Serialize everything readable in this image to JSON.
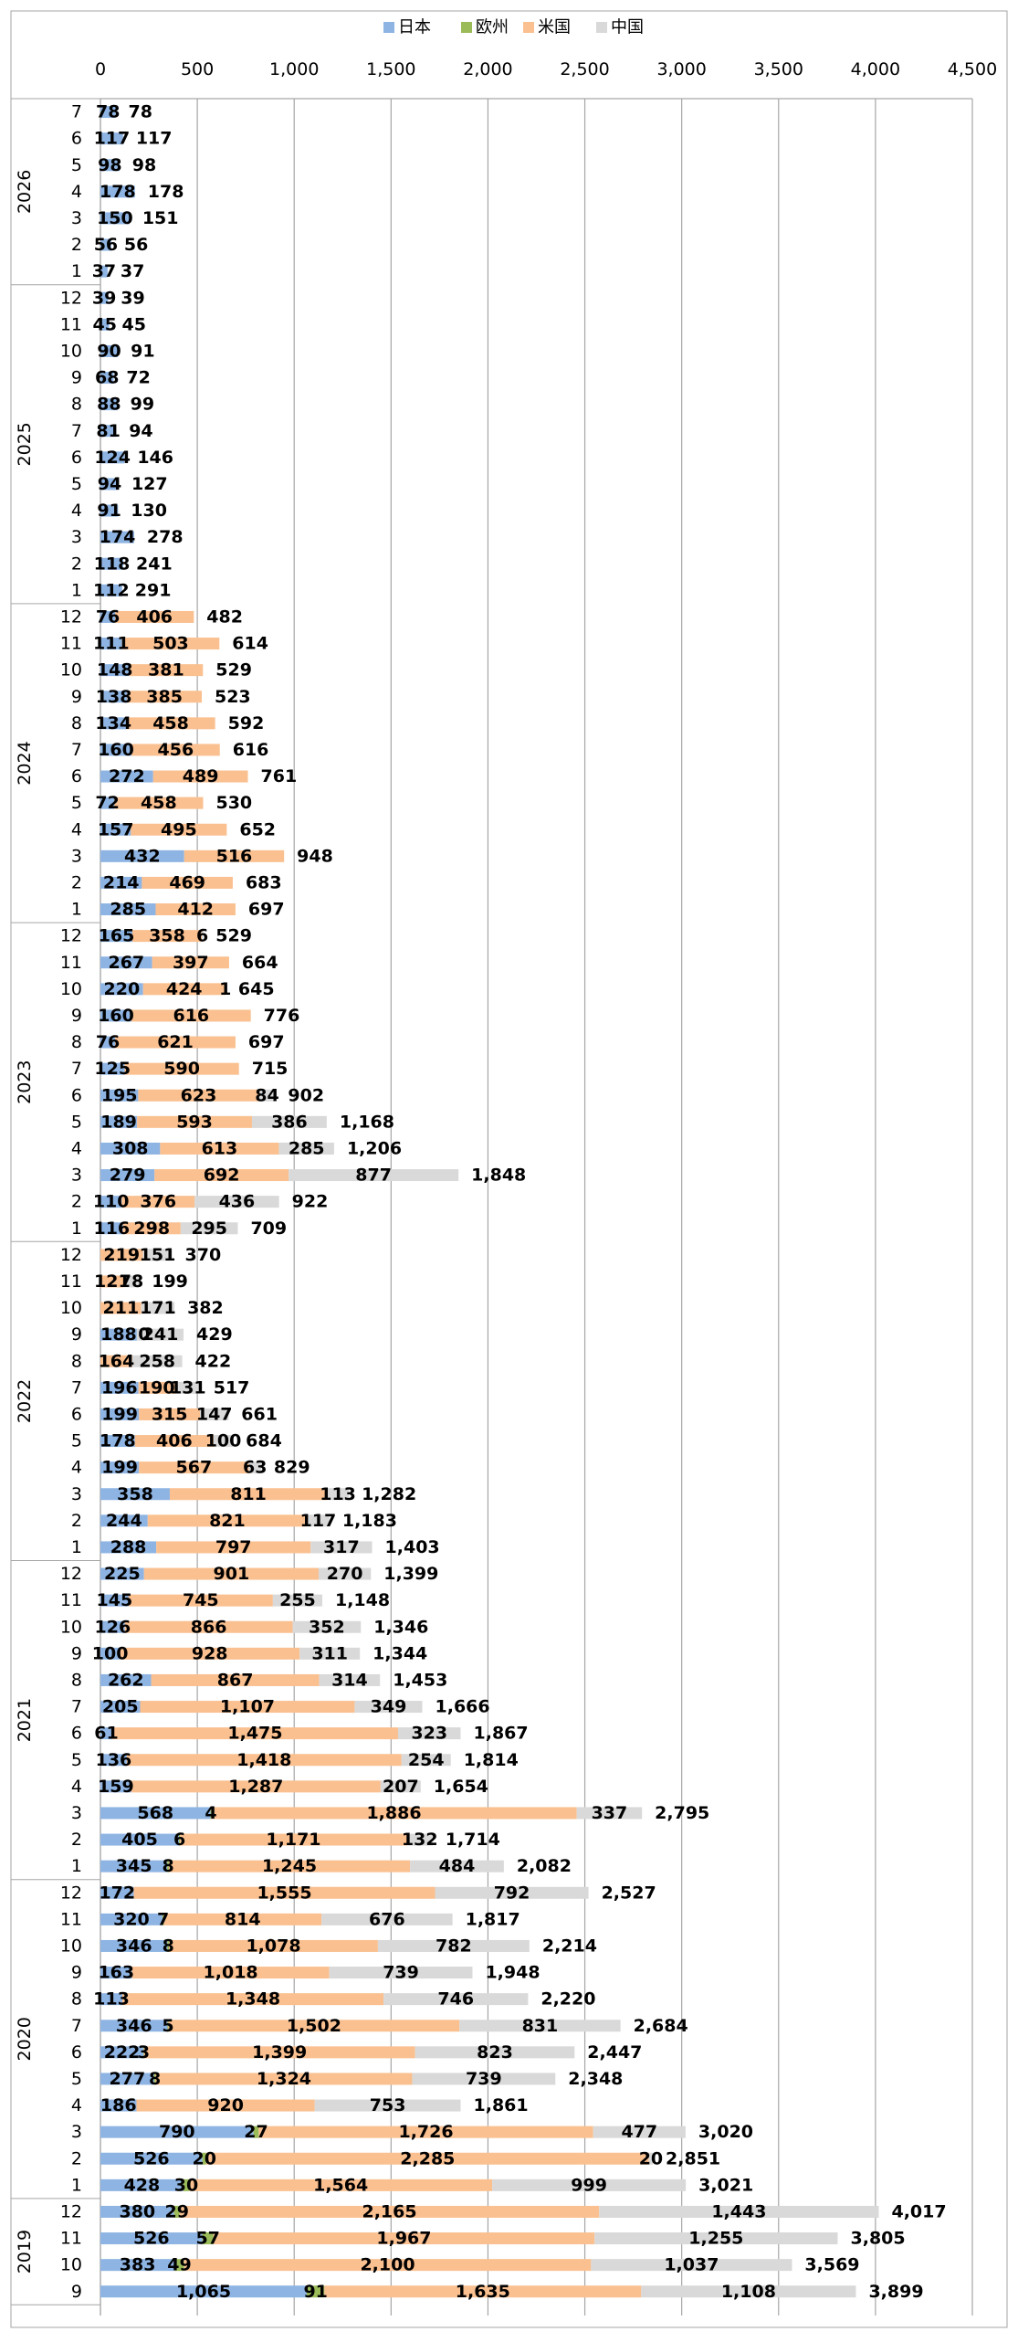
{
  "chart_data": {
    "type": "bar",
    "orientation": "horizontal",
    "stacked": true,
    "legend_position": "top",
    "grid": true,
    "xlim": [
      0,
      4500
    ],
    "x_ticks": [
      "0",
      "500",
      "1,000",
      "1,500",
      "2,000",
      "2,500",
      "3,000",
      "3,500",
      "4,000",
      "4,500"
    ],
    "series": [
      {
        "name": "日本",
        "color": "#8EB4E3"
      },
      {
        "name": "欧州",
        "color": "#9BBB59"
      },
      {
        "name": "米国",
        "color": "#FAC090"
      },
      {
        "name": "中国",
        "color": "#D9D9D9"
      }
    ],
    "groups": [
      {
        "year": "2026",
        "rows": [
          {
            "month": "7",
            "jp": 78,
            "eu": null,
            "us": null,
            "cn": null,
            "total": "78"
          },
          {
            "month": "6",
            "jp": 117,
            "eu": null,
            "us": null,
            "cn": null,
            "total": "117"
          },
          {
            "month": "5",
            "jp": 98,
            "eu": null,
            "us": null,
            "cn": null,
            "total": "98"
          },
          {
            "month": "4",
            "jp": 178,
            "eu": null,
            "us": null,
            "cn": null,
            "total": "178"
          },
          {
            "month": "3",
            "jp": 150,
            "eu": null,
            "us": null,
            "cn": null,
            "total": "151"
          },
          {
            "month": "2",
            "jp": 56,
            "eu": null,
            "us": null,
            "cn": null,
            "total": "56"
          },
          {
            "month": "1",
            "jp": 37,
            "eu": null,
            "us": null,
            "cn": null,
            "total": "37"
          }
        ]
      },
      {
        "year": "2025",
        "rows": [
          {
            "month": "12",
            "jp": 39,
            "eu": null,
            "us": null,
            "cn": null,
            "total": "39"
          },
          {
            "month": "11",
            "jp": 45,
            "eu": null,
            "us": null,
            "cn": null,
            "total": "45"
          },
          {
            "month": "10",
            "jp": 90,
            "eu": null,
            "us": null,
            "cn": null,
            "total": "91"
          },
          {
            "month": "9",
            "jp": 68,
            "eu": null,
            "us": null,
            "cn": null,
            "total": "72"
          },
          {
            "month": "8",
            "jp": 88,
            "eu": null,
            "us": null,
            "cn": null,
            "total": "99"
          },
          {
            "month": "7",
            "jp": 81,
            "eu": null,
            "us": null,
            "cn": null,
            "total": "94"
          },
          {
            "month": "6",
            "jp": 124,
            "eu": null,
            "us": null,
            "cn": null,
            "total": "146"
          },
          {
            "month": "5",
            "jp": 94,
            "eu": null,
            "us": null,
            "cn": null,
            "total": "127"
          },
          {
            "month": "4",
            "jp": 91,
            "eu": null,
            "us": null,
            "cn": null,
            "total": "130"
          },
          {
            "month": "3",
            "jp": 174,
            "eu": null,
            "us": null,
            "cn": null,
            "total": "278"
          },
          {
            "month": "2",
            "jp": 118,
            "eu": null,
            "us": null,
            "cn": null,
            "total": "241"
          },
          {
            "month": "1",
            "jp": 112,
            "eu": null,
            "us": null,
            "cn": null,
            "total": "291"
          }
        ]
      },
      {
        "year": "2024",
        "rows": [
          {
            "month": "12",
            "jp": 76,
            "eu": null,
            "us": 406,
            "cn": null,
            "total": "482"
          },
          {
            "month": "11",
            "jp": 111,
            "eu": null,
            "us": 503,
            "cn": null,
            "total": "614"
          },
          {
            "month": "10",
            "jp": 148,
            "eu": null,
            "us": 381,
            "cn": null,
            "total": "529"
          },
          {
            "month": "9",
            "jp": 138,
            "eu": null,
            "us": 385,
            "cn": null,
            "total": "523"
          },
          {
            "month": "8",
            "jp": 134,
            "eu": null,
            "us": 458,
            "cn": null,
            "total": "592"
          },
          {
            "month": "7",
            "jp": 160,
            "eu": null,
            "us": 456,
            "cn": null,
            "total": "616"
          },
          {
            "month": "6",
            "jp": 272,
            "eu": null,
            "us": 489,
            "cn": null,
            "total": "761"
          },
          {
            "month": "5",
            "jp": 72,
            "eu": null,
            "us": 458,
            "cn": null,
            "total": "530"
          },
          {
            "month": "4",
            "jp": 157,
            "eu": null,
            "us": 495,
            "cn": null,
            "total": "652"
          },
          {
            "month": "3",
            "jp": 432,
            "eu": null,
            "us": 516,
            "cn": null,
            "total": "948"
          },
          {
            "month": "2",
            "jp": 214,
            "eu": null,
            "us": 469,
            "cn": null,
            "total": "683"
          },
          {
            "month": "1",
            "jp": 285,
            "eu": null,
            "us": 412,
            "cn": null,
            "total": "697"
          }
        ]
      },
      {
        "year": "2023",
        "rows": [
          {
            "month": "12",
            "jp": 165,
            "eu": null,
            "us": 358,
            "cn": 6,
            "total": "529"
          },
          {
            "month": "11",
            "jp": 267,
            "eu": null,
            "us": 397,
            "cn": null,
            "total": "664"
          },
          {
            "month": "10",
            "jp": 220,
            "eu": null,
            "us": 424,
            "cn": 1,
            "total": "645"
          },
          {
            "month": "9",
            "jp": 160,
            "eu": null,
            "us": 616,
            "cn": null,
            "total": "776"
          },
          {
            "month": "8",
            "jp": 76,
            "eu": null,
            "us": 621,
            "cn": null,
            "total": "697"
          },
          {
            "month": "7",
            "jp": 125,
            "eu": null,
            "us": 590,
            "cn": null,
            "total": "715"
          },
          {
            "month": "6",
            "jp": 195,
            "eu": null,
            "us": 623,
            "cn": 84,
            "total": "902"
          },
          {
            "month": "5",
            "jp": 189,
            "eu": null,
            "us": 593,
            "cn": 386,
            "total": "1,168"
          },
          {
            "month": "4",
            "jp": 308,
            "eu": null,
            "us": 613,
            "cn": 285,
            "total": "1,206"
          },
          {
            "month": "3",
            "jp": 279,
            "eu": null,
            "us": 692,
            "cn": 877,
            "total": "1,848"
          },
          {
            "month": "2",
            "jp": 110,
            "eu": null,
            "us": 376,
            "cn": 436,
            "total": "922"
          },
          {
            "month": "1",
            "jp": 116,
            "eu": null,
            "us": 298,
            "cn": 295,
            "total": "709"
          }
        ]
      },
      {
        "year": "2022",
        "rows": [
          {
            "month": "12",
            "jp": null,
            "eu": null,
            "us": 219,
            "cn": 151,
            "total": "370"
          },
          {
            "month": "11",
            "jp": null,
            "eu": null,
            "us": 121,
            "cn": 78,
            "total": "199"
          },
          {
            "month": "10",
            "jp": null,
            "eu": null,
            "us": 211,
            "cn": 171,
            "total": "382"
          },
          {
            "month": "9",
            "jp": 188,
            "eu": null,
            "us": 0,
            "cn": 241,
            "total": "429"
          },
          {
            "month": "8",
            "jp": null,
            "eu": null,
            "us": 164,
            "cn": 258,
            "total": "422"
          },
          {
            "month": "7",
            "jp": 196,
            "eu": null,
            "us": 190,
            "cn": 131,
            "total": "517"
          },
          {
            "month": "6",
            "jp": 199,
            "eu": null,
            "us": 315,
            "cn": 147,
            "total": "661"
          },
          {
            "month": "5",
            "jp": 178,
            "eu": null,
            "us": 406,
            "cn": 100,
            "total": "684"
          },
          {
            "month": "4",
            "jp": 199,
            "eu": null,
            "us": 567,
            "cn": 63,
            "total": "829"
          },
          {
            "month": "3",
            "jp": 358,
            "eu": null,
            "us": 811,
            "cn": 113,
            "total": "1,282"
          },
          {
            "month": "2",
            "jp": 244,
            "eu": null,
            "us": 821,
            "cn": 117,
            "total": "1,183"
          },
          {
            "month": "1",
            "jp": 288,
            "eu": null,
            "us": 797,
            "cn": 317,
            "total": "1,403"
          }
        ]
      },
      {
        "year": "2021",
        "rows": [
          {
            "month": "12",
            "jp": 225,
            "eu": null,
            "us": 901,
            "cn": 270,
            "total": "1,399"
          },
          {
            "month": "11",
            "jp": 145,
            "eu": null,
            "us": 745,
            "cn": 255,
            "total": "1,148"
          },
          {
            "month": "10",
            "jp": 126,
            "eu": null,
            "us": 866,
            "cn": 352,
            "total": "1,346"
          },
          {
            "month": "9",
            "jp": 100,
            "eu": null,
            "us": 928,
            "cn": 311,
            "total": "1,344"
          },
          {
            "month": "8",
            "jp": 262,
            "eu": null,
            "us": 867,
            "cn": 314,
            "total": "1,453"
          },
          {
            "month": "7",
            "jp": 205,
            "eu": null,
            "us": "1,107",
            "cn": 349,
            "total": "1,666"
          },
          {
            "month": "6",
            "jp": 61,
            "eu": null,
            "us": "1,475",
            "cn": 323,
            "total": "1,867"
          },
          {
            "month": "5",
            "jp": 136,
            "eu": null,
            "us": "1,418",
            "cn": 254,
            "total": "1,814"
          },
          {
            "month": "4",
            "jp": 159,
            "eu": null,
            "us": "1,287",
            "cn": 207,
            "total": "1,654"
          },
          {
            "month": "3",
            "jp": 568,
            "eu": 4,
            "us": "1,886",
            "cn": 337,
            "total": "2,795"
          },
          {
            "month": "2",
            "jp": 405,
            "eu": 6,
            "us": "1,171",
            "cn": 132,
            "total": "1,714"
          },
          {
            "month": "1",
            "jp": 345,
            "eu": 8,
            "us": "1,245",
            "cn": 484,
            "total": "2,082"
          }
        ]
      },
      {
        "year": "2020",
        "rows": [
          {
            "month": "12",
            "jp": 172,
            "eu": null,
            "us": "1,555",
            "cn": 792,
            "total": "2,527"
          },
          {
            "month": "11",
            "jp": 320,
            "eu": 7,
            "us": 814,
            "cn": 676,
            "total": "1,817"
          },
          {
            "month": "10",
            "jp": 346,
            "eu": 8,
            "us": "1,078",
            "cn": 782,
            "total": "2,214"
          },
          {
            "month": "9",
            "jp": 163,
            "eu": null,
            "us": "1,018",
            "cn": 739,
            "total": "1,948"
          },
          {
            "month": "8",
            "jp": 113,
            "eu": null,
            "us": "1,348",
            "cn": 746,
            "total": "2,220"
          },
          {
            "month": "7",
            "jp": 346,
            "eu": 5,
            "us": "1,502",
            "cn": 831,
            "total": "2,684"
          },
          {
            "month": "6",
            "jp": 222,
            "eu": 3,
            "us": "1,399",
            "cn": 823,
            "total": "2,447"
          },
          {
            "month": "5",
            "jp": 277,
            "eu": 8,
            "us": "1,324",
            "cn": 739,
            "total": "2,348"
          },
          {
            "month": "4",
            "jp": 186,
            "eu": null,
            "us": 920,
            "cn": 753,
            "total": "1,861"
          },
          {
            "month": "3",
            "jp": 790,
            "eu": 27,
            "us": "1,726",
            "cn": 477,
            "total": "3,020"
          },
          {
            "month": "2",
            "jp": 526,
            "eu": 20,
            "us": "2,285",
            "cn": 20,
            "total": "2,851"
          },
          {
            "month": "1",
            "jp": 428,
            "eu": 30,
            "us": "1,564",
            "cn": 999,
            "total": "3,021"
          }
        ]
      },
      {
        "year": "2019",
        "rows": [
          {
            "month": "12",
            "jp": 380,
            "eu": 29,
            "us": "2,165",
            "cn": "1,443",
            "total": "4,017"
          },
          {
            "month": "11",
            "jp": 526,
            "eu": 57,
            "us": "1,967",
            "cn": "1,255",
            "total": "3,805"
          },
          {
            "month": "10",
            "jp": 383,
            "eu": 49,
            "us": "2,100",
            "cn": "1,037",
            "total": "3,569"
          },
          {
            "month": "9",
            "jp": "1,065",
            "eu": 91,
            "us": "1,635",
            "cn": "1,108",
            "total": "3,899"
          }
        ]
      }
    ]
  }
}
